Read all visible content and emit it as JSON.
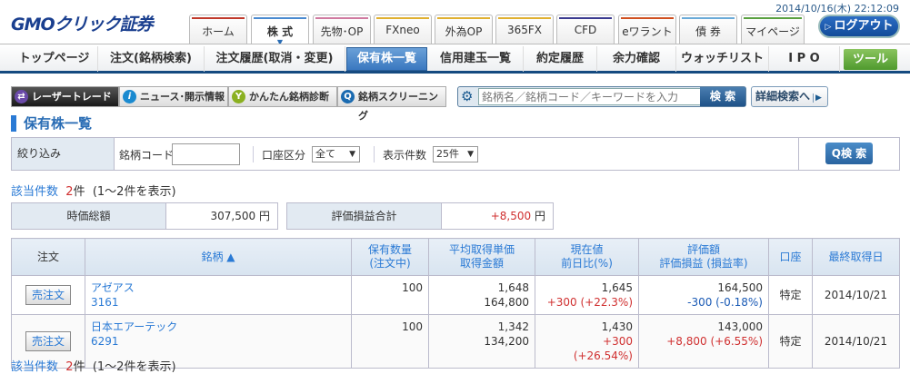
{
  "header": {
    "logo": "GMOクリック証券",
    "datetime": "2014/10/16(木) 22:12:09",
    "logout": "ログアウト",
    "tabs": [
      {
        "label": "ホーム",
        "color": "#c0392b"
      },
      {
        "label": "株 式",
        "color": "#4a8ad0"
      },
      {
        "label": "先物･OP",
        "color": "#d07aa0"
      },
      {
        "label": "FXneo",
        "color": "#e0b030"
      },
      {
        "label": "外為OP",
        "color": "#e0b030"
      },
      {
        "label": "365FX",
        "color": "#e0b030"
      },
      {
        "label": "CFD",
        "color": "#3a3a90"
      },
      {
        "label": "eワラント",
        "color": "#d05020"
      },
      {
        "label": "債 券",
        "color": "#6aaad8"
      },
      {
        "label": "マイページ",
        "color": "#5aa040"
      }
    ],
    "active_tab": "株 式"
  },
  "subnav": {
    "items": [
      "トップページ",
      "注文(銘柄検索)",
      "注文履歴(取消・変更)",
      "保有株一覧",
      "信用建玉一覧",
      "約定履歴",
      "余力確認",
      "ウォッチリスト",
      "I P O"
    ],
    "active": "保有株一覧",
    "tool": "ツール"
  },
  "toolbar": {
    "buttons": [
      "レーザートレード",
      "ニュース･開示情報",
      "かんたん銘柄診断",
      "銘柄スクリーニング"
    ],
    "search_placeholder": "銘柄名／銘柄コード／キーワードを入力",
    "search_button": "検 索",
    "detail_search": "詳細検索へ"
  },
  "page": {
    "title": "保有株一覧"
  },
  "filter": {
    "label": "絞り込み",
    "code_label": "銘柄コード",
    "code_value": "",
    "account_label": "口座区分",
    "account_value": "全て",
    "display_label": "表示件数",
    "display_value": "25件",
    "search_button": "検 索"
  },
  "count": {
    "label": "該当件数",
    "num": "2",
    "unit": "件",
    "range": "(1～2件を表示)"
  },
  "summary": {
    "market_value_label": "時価総額",
    "market_value": "307,500",
    "pl_label": "評価損益合計",
    "pl": "+8,500",
    "yen": "円"
  },
  "table": {
    "headers": [
      "注文",
      "銘柄 ▲",
      "保有数量\n(注文中)",
      "平均取得単価\n取得金額",
      "現在値\n前日比(%)",
      "評価額\n評価損益 (損益率)",
      "口座",
      "最終取得日"
    ],
    "rows": [
      {
        "order": "売注文",
        "name": "アゼアス",
        "code": "3161",
        "qty": "100",
        "avg_price": "1,648",
        "cost": "164,800",
        "price": "1,645",
        "change": "+300 (+22.3%)",
        "value": "164,500",
        "pl": "-300 (-0.18%)",
        "account": "特定",
        "date": "2014/10/21"
      },
      {
        "order": "売注文",
        "name": "日本エアーテック",
        "code": "6291",
        "qty": "100",
        "avg_price": "1,342",
        "cost": "134,200",
        "price": "1,430",
        "change": "+300 (+26.54%)",
        "value": "143,000",
        "pl": "+8,800 (+6.55%)",
        "account": "特定",
        "date": "2014/10/21"
      }
    ]
  }
}
